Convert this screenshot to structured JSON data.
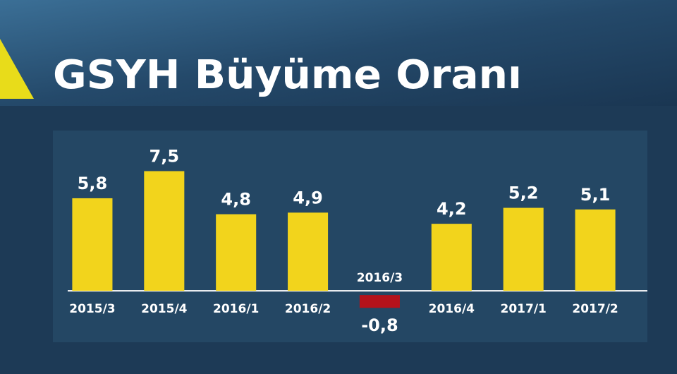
{
  "chart_data": {
    "type": "bar",
    "title": "GSYH Büyüme Oranı",
    "categories": [
      "2015/3",
      "2015/4",
      "2016/1",
      "2016/2",
      "2016/3",
      "2016/4",
      "2017/1",
      "2017/2"
    ],
    "values": [
      5.8,
      7.5,
      4.8,
      4.9,
      -0.8,
      4.2,
      5.2,
      5.1
    ],
    "value_labels": [
      "5,8",
      "7,5",
      "4,8",
      "4,9",
      "-0,8",
      "4,2",
      "5,2",
      "5,1"
    ],
    "color": "#f2d41c",
    "negative_color": "#b5121b",
    "ylim": [
      -3,
      9.6
    ]
  }
}
